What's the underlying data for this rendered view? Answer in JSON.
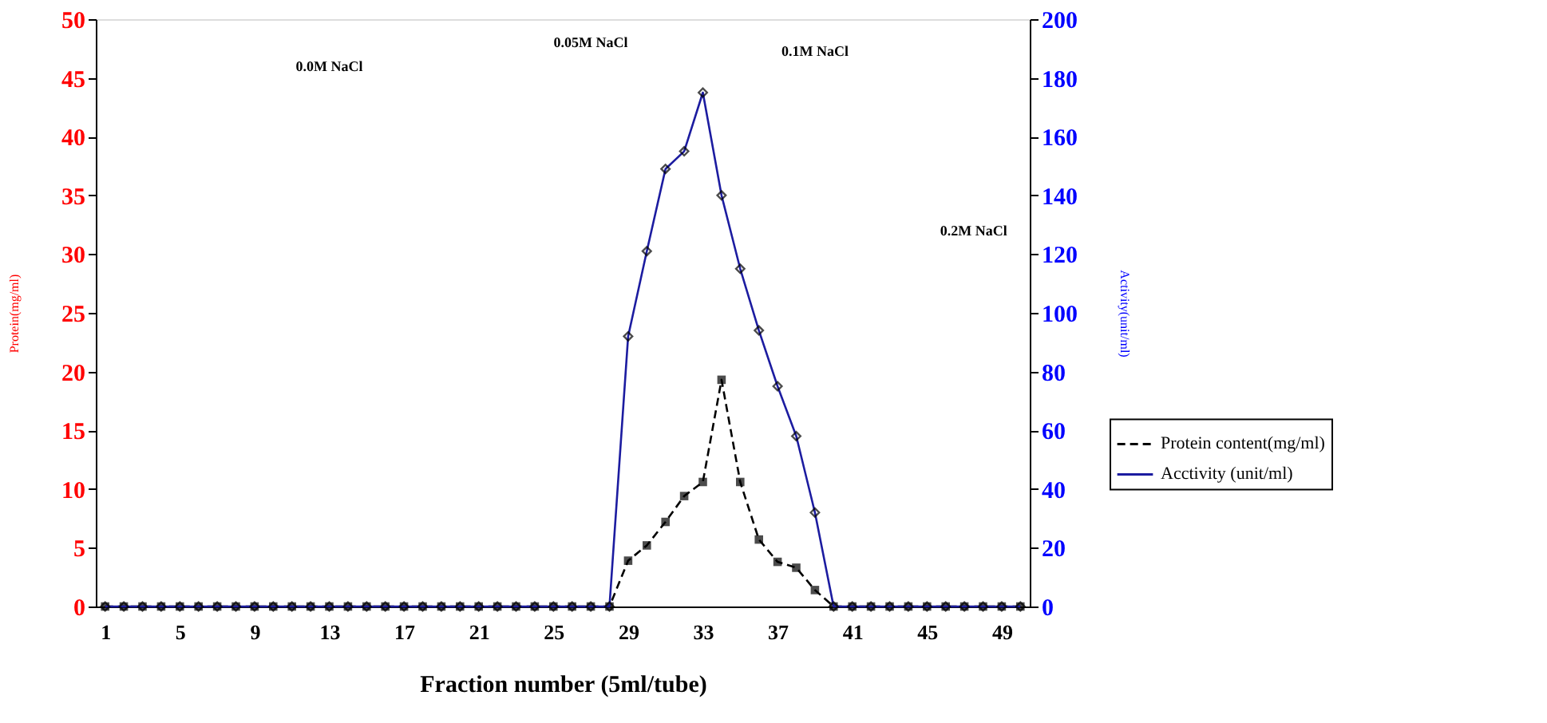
{
  "chart_data": {
    "type": "line",
    "xlabel": "Fraction number (5ml/tube)",
    "ylabel": "Protein(mg/ml)",
    "y2label": "Activity(unit/ml)",
    "categories": [
      "1",
      null,
      null,
      null,
      "5",
      null,
      null,
      null,
      "9",
      null,
      null,
      null,
      "13",
      null,
      null,
      null,
      "17",
      null,
      null,
      null,
      "21",
      null,
      null,
      null,
      "25",
      null,
      null,
      null,
      "29",
      null,
      null,
      null,
      "33",
      null,
      null,
      null,
      "37",
      null,
      null,
      null,
      "41",
      null,
      null,
      null,
      "45",
      null,
      null,
      null,
      "49",
      null
    ],
    "series": [
      {
        "name": "Protein content(mg/ml)",
        "color": "#000000",
        "marker": "square",
        "line_style": "dashed",
        "values": [
          0,
          0,
          0,
          0,
          0,
          0,
          0,
          0,
          0,
          0,
          0,
          0,
          0,
          0,
          0,
          0,
          0,
          0,
          0,
          0,
          0,
          0,
          0,
          0,
          0,
          0,
          0,
          0,
          3.9,
          5.2,
          7.2,
          9.4,
          10.6,
          19.3,
          10.6,
          5.7,
          3.8,
          3.3,
          1.4,
          0,
          0,
          0,
          0,
          0,
          0,
          0,
          0,
          0,
          0,
          0
        ]
      },
      {
        "name": "Acctivity (unit/ml)",
        "color": "#1c1ca0",
        "marker": "diamond",
        "line_style": "solid",
        "axis": "y2",
        "values": [
          0,
          0,
          0,
          0,
          0,
          0,
          0,
          0,
          0,
          0,
          0,
          0,
          0,
          0,
          0,
          0,
          0,
          0,
          0,
          0,
          0,
          0,
          0,
          0,
          0,
          0,
          0,
          0,
          92,
          121,
          149,
          155,
          175,
          140,
          115,
          94,
          75,
          58,
          32,
          0,
          0,
          0,
          0,
          0,
          0,
          0,
          0,
          0,
          0,
          0
        ]
      }
    ],
    "ylim": [
      0,
      50
    ],
    "yticks": [
      0,
      5,
      10,
      15,
      20,
      25,
      30,
      35,
      40,
      45,
      50
    ],
    "y2lim": [
      0,
      200
    ],
    "y2ticks": [
      0,
      20,
      40,
      60,
      80,
      100,
      120,
      140,
      160,
      180,
      200
    ],
    "annotations": [
      "0.0M NaCl",
      "0.05M NaCl",
      "0.1M NaCl",
      "0.2M NaCl"
    ],
    "grid": false,
    "legend": "right"
  }
}
